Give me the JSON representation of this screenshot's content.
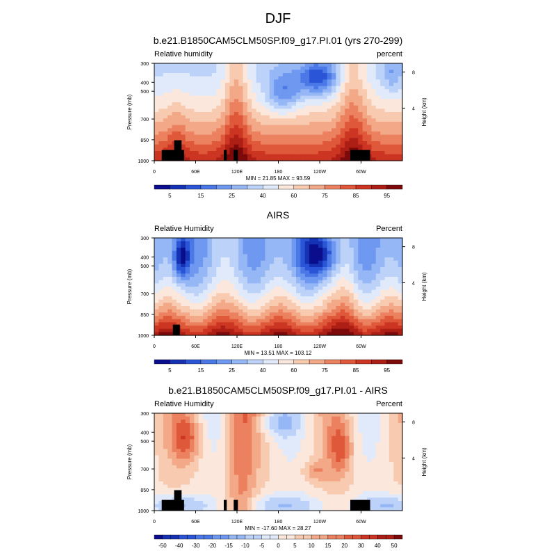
{
  "figure_title": "DJF",
  "chart_data": [
    {
      "type": "heatmap",
      "title": "b.e21.B1850CAM5CLM50SP.f09_g17.PI.01 (yrs 270-299)",
      "left_label": "Relative humidity",
      "right_label": "percent",
      "ylabel": "Pressure (mb)",
      "y2label": "Height (km)",
      "y_ticks": [
        "300",
        "400",
        "500",
        "700",
        "850",
        "1000"
      ],
      "y2_ticks": [
        "8",
        "4"
      ],
      "x_ticks": [
        "0",
        "60E",
        "120E",
        "180",
        "120W",
        "60W"
      ],
      "stats": "MIN =  21.85  MAX =  93.59",
      "min": 21.85,
      "max": 93.59,
      "colorbar_labels": [
        "5",
        "15",
        "25",
        "40",
        "60",
        "75",
        "85",
        "95"
      ]
    },
    {
      "type": "heatmap",
      "title": "AIRS",
      "left_label": "Relative Humidity",
      "right_label": "Percent",
      "ylabel": "Pressure (mb)",
      "y2label": "Height (km)",
      "y_ticks": [
        "300",
        "400",
        "500",
        "700",
        "850",
        "1000"
      ],
      "y2_ticks": [
        "8",
        "4"
      ],
      "x_ticks": [
        "0",
        "60E",
        "120E",
        "180",
        "120W",
        "60W"
      ],
      "stats": "MIN =  13.51  MAX = 103.12",
      "min": 13.51,
      "max": 103.12,
      "colorbar_labels": [
        "5",
        "15",
        "25",
        "40",
        "60",
        "75",
        "85",
        "95"
      ]
    },
    {
      "type": "heatmap",
      "title": "b.e21.B1850CAM5CLM50SP.f09_g17.PI.01 - AIRS",
      "left_label": "Relative Humidity",
      "right_label": "Percent",
      "ylabel": "Pressure (mb)",
      "y2label": "Height (km)",
      "y_ticks": [
        "300",
        "400",
        "500",
        "700",
        "850",
        "1000"
      ],
      "y2_ticks": [
        "8",
        "4"
      ],
      "x_ticks": [
        "0",
        "60E",
        "120E",
        "180",
        "120W",
        "60W"
      ],
      "stats": "MIN = -17.60  MAX =  28.27",
      "min": -17.6,
      "max": 28.27,
      "colorbar_labels": [
        "-50",
        "-40",
        "-30",
        "-20",
        "-15",
        "-10",
        "-5",
        "0",
        "5",
        "10",
        "15",
        "20",
        "30",
        "40",
        "50"
      ]
    }
  ],
  "colors": {
    "palette": [
      "#0a0d8c",
      "#1632b4",
      "#2a55d6",
      "#4a78e6",
      "#6f98f0",
      "#96b7f5",
      "#bdd2f8",
      "#e0eafa",
      "#fbe7dc",
      "#f8cbb1",
      "#f3a987",
      "#ec8160",
      "#e0583a",
      "#cc3522",
      "#ad1f14",
      "#7d0a0a"
    ],
    "mask": "#000000",
    "axis": "#000000"
  }
}
